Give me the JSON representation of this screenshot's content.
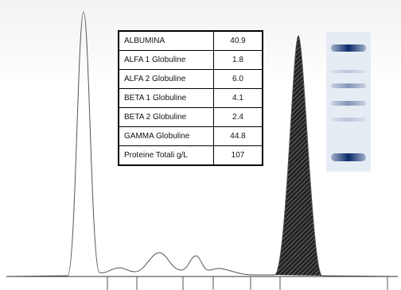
{
  "table": {
    "rows": [
      [
        "ALBUMINA",
        "40.9"
      ],
      [
        "ALFA 1 Globuline",
        "1.8"
      ],
      [
        "ALFA 2 Globuline",
        "6.0"
      ],
      [
        "BETA 1 Globuline",
        "4.1"
      ],
      [
        "BETA 2 Globuline",
        "2.4"
      ],
      [
        "GAMMA Globuline",
        "44.8"
      ],
      [
        "Proteine Totali g/L",
        "107"
      ]
    ]
  }
}
